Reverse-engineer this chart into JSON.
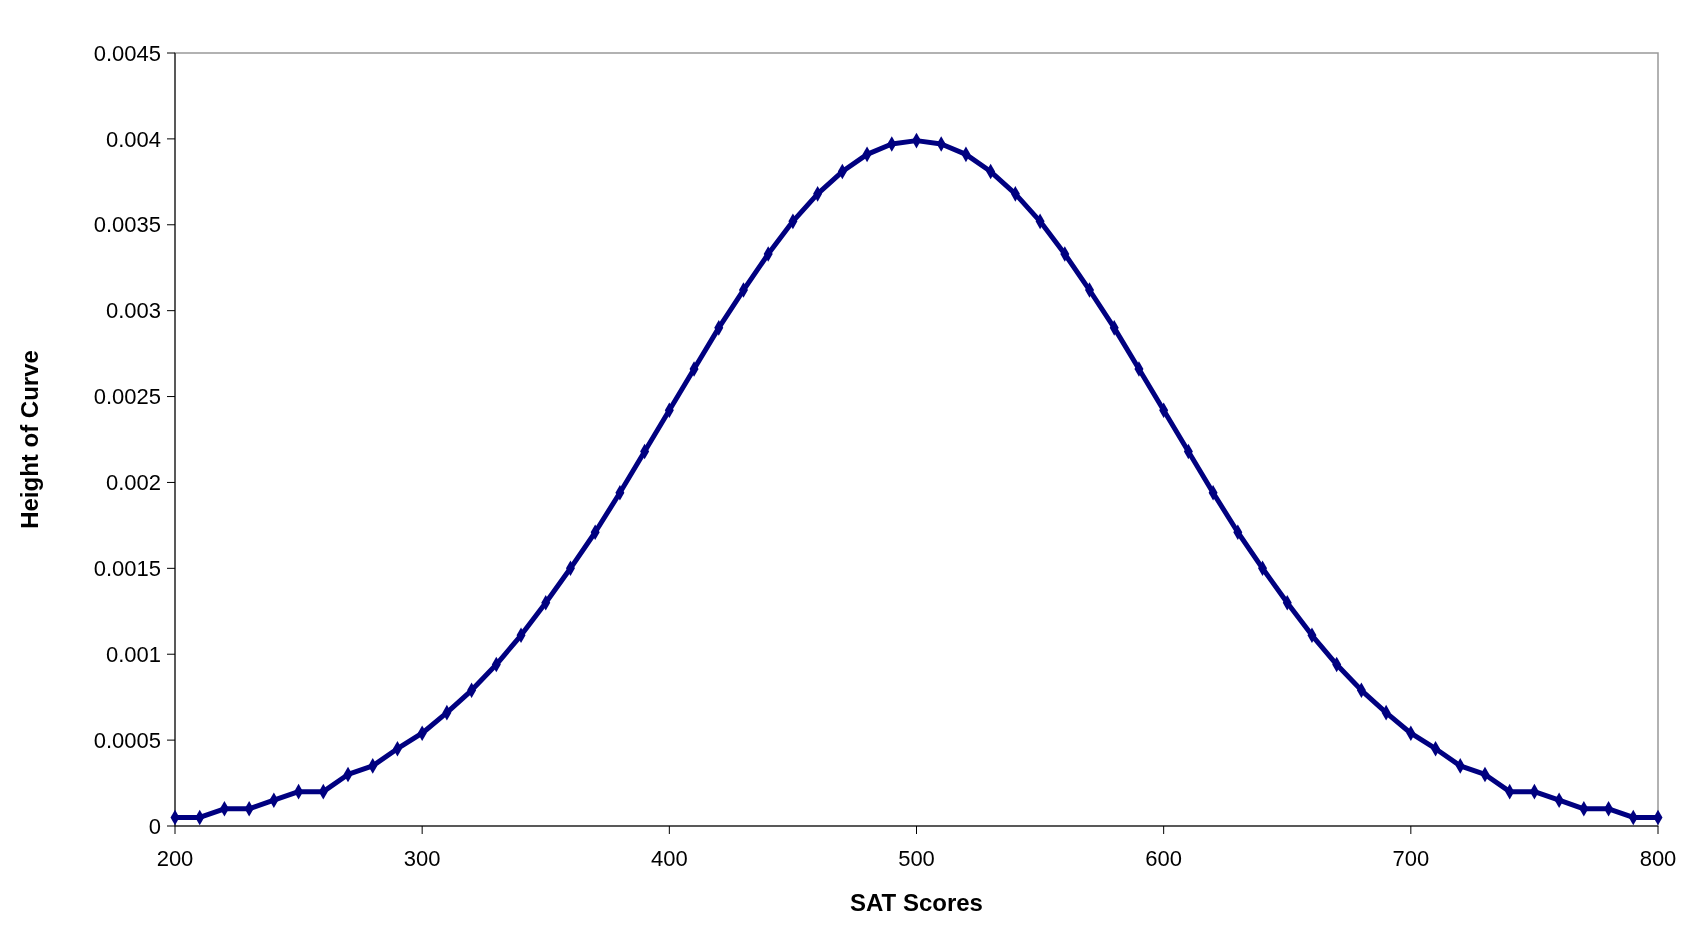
{
  "chart_data": {
    "type": "line",
    "xlabel": "SAT Scores",
    "ylabel": "Height of Curve",
    "marker": "diamond",
    "line_style": "solid",
    "grid": false,
    "xlim": [
      200,
      800
    ],
    "xticks": [
      200,
      300,
      400,
      500,
      600,
      700,
      800
    ],
    "ylim": [
      0,
      0.0045
    ],
    "yticks": [
      0,
      0.0005,
      0.001,
      0.0015,
      0.002,
      0.0025,
      0.003,
      0.0035,
      0.004,
      0.0045
    ],
    "x": [
      200,
      210,
      220,
      230,
      240,
      250,
      260,
      270,
      280,
      290,
      300,
      310,
      320,
      330,
      340,
      350,
      360,
      370,
      380,
      390,
      400,
      410,
      420,
      430,
      440,
      450,
      460,
      470,
      480,
      490,
      500,
      510,
      520,
      530,
      540,
      550,
      560,
      570,
      580,
      590,
      600,
      610,
      620,
      630,
      640,
      650,
      660,
      670,
      680,
      690,
      700,
      710,
      720,
      730,
      740,
      750,
      760,
      770,
      780,
      790,
      800
    ],
    "series": [
      {
        "color": "#000080",
        "values": [
          5e-05,
          5e-05,
          0.0001,
          0.0001,
          0.00015,
          0.0002,
          0.0002,
          0.0003,
          0.00035,
          0.00045,
          0.00054,
          0.00066,
          0.00079,
          0.00094,
          0.00111,
          0.0013,
          0.0015,
          0.00171,
          0.00194,
          0.00218,
          0.00242,
          0.00266,
          0.0029,
          0.00312,
          0.00333,
          0.00352,
          0.00368,
          0.00381,
          0.00391,
          0.00397,
          0.00399,
          0.00397,
          0.00391,
          0.00381,
          0.00368,
          0.00352,
          0.00333,
          0.00312,
          0.0029,
          0.00266,
          0.00242,
          0.00218,
          0.00194,
          0.00171,
          0.0015,
          0.0013,
          0.00111,
          0.00094,
          0.00079,
          0.00066,
          0.00054,
          0.00045,
          0.00035,
          0.0003,
          0.0002,
          0.0002,
          0.00015,
          0.0001,
          0.0001,
          5e-05,
          5e-05
        ]
      }
    ]
  }
}
